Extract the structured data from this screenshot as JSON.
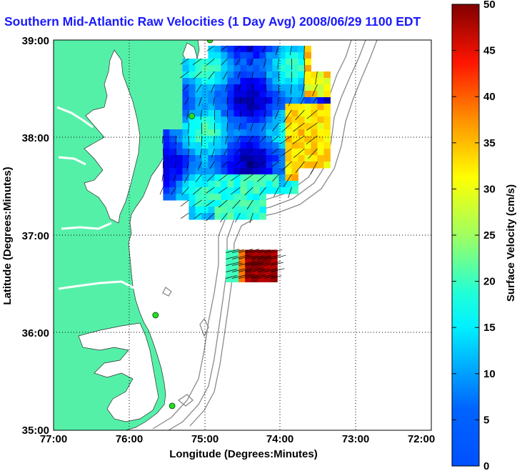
{
  "chart_data": {
    "type": "heatmap",
    "title": "Southern Mid-Atlantic Raw Velocities (1 Day Avg) 2008/06/29 1100 EDT",
    "xlabel": "Longitude (Degrees:Minutes)",
    "ylabel": "Latitude (Degrees:Minutes)",
    "colorbar_label": "Surface Velocity (cm/s)",
    "x_ticks": [
      "77:00",
      "76:00",
      "75:00",
      "74:00",
      "73:00",
      "72:00"
    ],
    "y_ticks": [
      "39:00",
      "38:00",
      "37:00",
      "36:00",
      "35:00"
    ],
    "colorbar_ticks": [
      "0",
      "5",
      "10",
      "15",
      "20",
      "25",
      "30",
      "35",
      "40",
      "45",
      "50"
    ],
    "xlim": [
      -77,
      -72
    ],
    "ylim": [
      35,
      39
    ],
    "clim": [
      0,
      50
    ],
    "grid": true,
    "colormap": "jet",
    "land_color": "#55f0a8",
    "stations": [
      {
        "lon": -74.93,
        "lat": 39.0
      },
      {
        "lon": -75.17,
        "lat": 38.22
      },
      {
        "lon": -75.65,
        "lat": 36.18
      },
      {
        "lon": -75.43,
        "lat": 35.25
      }
    ],
    "regions": [
      {
        "name": "north",
        "lon": [
          -75.55,
          -73.42
        ],
        "lat": [
          37.2,
          39.0
        ]
      },
      {
        "name": "south",
        "lon": [
          -74.72,
          -74.1
        ],
        "lat": [
          36.55,
          36.85
        ]
      }
    ]
  }
}
